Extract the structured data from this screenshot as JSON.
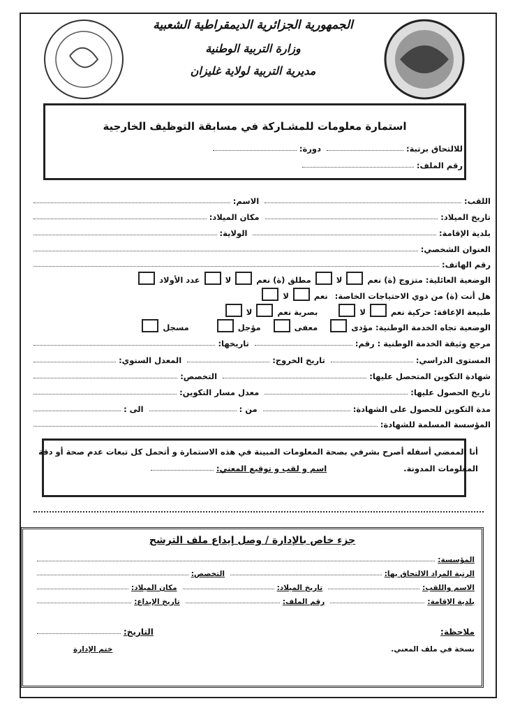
{
  "header": {
    "line1": "الجمهورية الجزائرية الديمقراطية الشعبية",
    "line2": "وزارة التربية الوطنية",
    "line3": "مديرية التربية لولاية غليزان"
  },
  "title_box": {
    "title": "استمارة معلومات للمشـاركة في مسابقة التوظيف الخارجية",
    "rank": "للالتحاق برتبة:",
    "session": "دورة:",
    "file_no": "رقم الملف:"
  },
  "personal": {
    "surname": "اللقب:",
    "name": "الاسم:",
    "birth_date": "تاريخ الميلاد:",
    "birth_place": "مكان الميلاد:",
    "residence": "بلدية الإقامة:",
    "wilaya": "الولاية:",
    "address": "العنوان الشخصي:",
    "phone": "رقم الهاتف:",
    "family": {
      "label": "الوضعية العائلية: متزوج (ة) نعم",
      "no1": "لا",
      "divorced": "مطلق (ة) نعم",
      "no2": "لا",
      "children": "عدد الأولاد"
    },
    "special": {
      "label": "هل أنت (ة) من ذوي الاحتياجات الخاصة:",
      "yes": "نعم",
      "no": "لا"
    },
    "disability": {
      "label": "طبيعة الإعاقة: حركية نعم",
      "no1": "لا",
      "visual": "بصرية نعم",
      "no2": "لا"
    },
    "service": {
      "label": "الوضعية تجاه الخدمة الوطنية: مؤدى",
      "exempt": "معفى",
      "postponed": "مؤجل",
      "registered": "مسجل"
    },
    "service_doc": {
      "label": "مرجع وثيقة الخدمة الوطنية : رقم:",
      "date": "تاريخها:"
    },
    "education": {
      "level": "المستوى الدراسي:",
      "exit": "تاريخ الخروج:",
      "avg": "المعدل السنوي:"
    },
    "certificate": {
      "label": "شهادة التكوين المتحصل عليها:",
      "spec": "التخصص:"
    },
    "obtained": {
      "label": "تاريخ الحصول عليها:",
      "avg": "معدل مسار التكوين:"
    },
    "duration": {
      "label": "مدة التكوين للحصول على الشهادة:",
      "from": "من :",
      "to": "الى :"
    },
    "institution": "المؤسسة المسلمة للشهادة:"
  },
  "declaration": {
    "text": "أنا الممضي أسفله أصرح بشرفي بصحة المعلومات المبينة في هذه الاستمارة و أتحمل كل تبعات عدم صحة أو دقة",
    "text2": "المعلومات المدونة.",
    "signature": "اسم و لقب و توقيع المعني:"
  },
  "admin": {
    "title": "جزء خاص بالإدارة / وصل إيداع ملف الترشح",
    "institution": "المؤسسة:",
    "rank": "الرتبة المراد الالتحاق بها:",
    "spec": "التخصص:",
    "name": "الاسم واللقب:",
    "birth_date": "تاريخ الميلاد:",
    "birth_place": "مكان الميلاد:",
    "residence": "بلدية الإقامة:",
    "file_no": "رقم الملف:",
    "deposit_date": "تاريخ الإيداع:",
    "note": "ملاحظة:",
    "date": "التاريخ:",
    "copy": "نسخة في ملف المعني.",
    "stamp": "ختم الإدارة"
  }
}
